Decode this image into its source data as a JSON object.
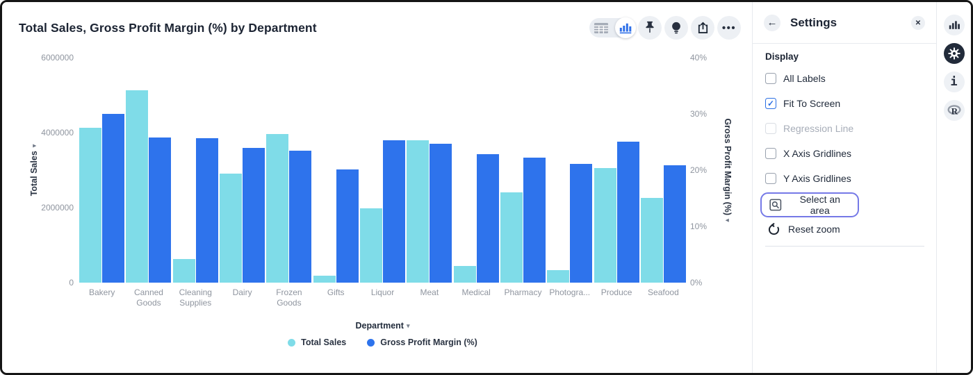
{
  "header": {
    "title": "Total Sales, Gross Profit Margin (%) by Department"
  },
  "chart_data": {
    "type": "bar",
    "title": "Total Sales, Gross Profit Margin (%) by Department",
    "categories": [
      "Bakery",
      "Canned Goods",
      "Cleaning Supplies",
      "Dairy",
      "Frozen Goods",
      "Gifts",
      "Liquor",
      "Meat",
      "Medical",
      "Pharmacy",
      "Photogra...",
      "Produce",
      "Seafood"
    ],
    "series": [
      {
        "name": "Total Sales",
        "axis": "left",
        "color": "#7fdce8",
        "values": [
          4130000,
          5130000,
          630000,
          2900000,
          3960000,
          190000,
          1980000,
          3790000,
          450000,
          2410000,
          330000,
          3060000,
          2260000
        ]
      },
      {
        "name": "Gross Profit Margin (%)",
        "axis": "right",
        "color": "#2e73ec",
        "values": [
          30.0,
          25.8,
          25.7,
          24.0,
          23.5,
          20.1,
          25.3,
          24.7,
          22.8,
          22.2,
          21.1,
          25.1,
          20.9
        ]
      }
    ],
    "left_axis": {
      "label": "Total Sales",
      "min": 0,
      "max": 6000000,
      "ticks": [
        "6000000",
        "4000000",
        "2000000",
        "0"
      ]
    },
    "right_axis": {
      "label": "Gross Profit Margin (%)",
      "min": 0,
      "max": 40,
      "ticks": [
        "40%",
        "30%",
        "20%",
        "10%",
        "0%"
      ]
    },
    "x_axis": {
      "label": "Department"
    },
    "legend": [
      "Total Sales",
      "Gross Profit Margin (%)"
    ],
    "gridlines": false,
    "legend_position": "bottom"
  },
  "settings_panel": {
    "title": "Settings",
    "section": "Display",
    "checkboxes": [
      {
        "label": "All Labels",
        "checked": false,
        "disabled": false
      },
      {
        "label": "Fit To Screen",
        "checked": true,
        "disabled": false
      },
      {
        "label": "Regression Line",
        "checked": false,
        "disabled": true
      },
      {
        "label": "X Axis Gridlines",
        "checked": false,
        "disabled": false
      },
      {
        "label": "Y Axis Gridlines",
        "checked": false,
        "disabled": false
      }
    ],
    "select_area_label": "Select an area",
    "reset_zoom_label": "Reset zoom"
  },
  "icons": {
    "back": "←",
    "close": "✕",
    "check": "✓",
    "sort_down": "▾",
    "ellipsis": "•••",
    "info": "i",
    "r_logo": "R"
  },
  "colors": {
    "bar_cyan": "#7fdce8",
    "bar_blue": "#2e73ec",
    "accent_blue": "#2b6fe4",
    "focus_ring": "#7579e7",
    "text_dark": "#1c2433",
    "text_grey": "#8f959f",
    "rail_active": "#222b3a"
  }
}
